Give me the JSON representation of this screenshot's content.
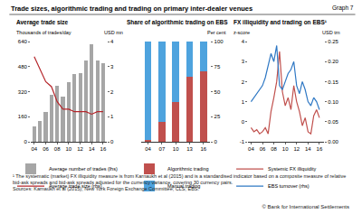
{
  "title": "Trade sizes, algorithmic trading and trading on primary inter-dealer venues",
  "graph_label": "Graph 7",
  "footnote": "¹ The systematic (market) FX illiquidity measure is from Karnaukh et al (2015) and is a standardised indicator based on a composite measure of relative bid-ask spreads and bid-ask spreads adjusted for the currency variance, covering 30 currency pairs.",
  "sources": "Sources: Karnaukh et al (2015); New York Foreign Exchange Committee; CLS; EBS.",
  "copyright": "© Bank for International Settlements",
  "chart_data": [
    {
      "type": "bar",
      "title": "Average trade size",
      "ylabel": "Thousands of trades/day",
      "y2label": "USD mn",
      "x": [
        2004,
        2005,
        2006,
        2007,
        2008,
        2009,
        2010,
        2011,
        2012,
        2013,
        2014,
        2015,
        2016
      ],
      "xlim": [
        2003.4,
        2016.6
      ],
      "xticks": [
        {
          "value": 2004,
          "label": "04"
        },
        {
          "value": 2006,
          "label": "06"
        },
        {
          "value": 2008,
          "label": "08"
        },
        {
          "value": 2010,
          "label": "10"
        },
        {
          "value": 2012,
          "label": "12"
        },
        {
          "value": 2014,
          "label": "14"
        },
        {
          "value": 2016,
          "label": "16"
        }
      ],
      "ylim": [
        0,
        640
      ],
      "yticks": [
        0,
        160,
        320,
        480,
        640
      ],
      "y2lim": [
        0,
        4
      ],
      "y2ticks": [
        0,
        1,
        2,
        3,
        4
      ],
      "grid": false,
      "series": [
        {
          "name": "Average number of trades (lhs)",
          "type": "bar",
          "color": "#a6a6a6",
          "values": [
            100,
            130,
            190,
            300,
            360,
            290,
            380,
            430,
            440,
            520,
            620,
            520,
            500
          ]
        },
        {
          "name": "Average trade size (rhs)",
          "type": "line",
          "axis": "y2",
          "color": "#b5262b",
          "values": [
            3.4,
            2.9,
            2.4,
            2.2,
            1.6,
            1.3,
            1.3,
            1.2,
            1.2,
            1.2,
            1.1,
            1.2,
            1.2
          ]
        }
      ]
    },
    {
      "type": "bar",
      "title": "Share of algorithmic trading on EBS",
      "ylabel": "Per cent",
      "categories": [
        "04",
        "07",
        "10",
        "13",
        "16"
      ],
      "ylim": [
        0,
        100
      ],
      "yticks": [
        0,
        25,
        50,
        75,
        100
      ],
      "stacked": true,
      "grid": false,
      "series": [
        {
          "name": "Algorithmic trading",
          "color": "#c0504d",
          "values": [
            2,
            20,
            40,
            65,
            70
          ]
        },
        {
          "name": "Manual trading",
          "color": "#4ea3de",
          "values": [
            98,
            80,
            60,
            35,
            30
          ]
        }
      ]
    },
    {
      "type": "line",
      "title": "FX illiquidity and trading on EBS¹",
      "ylabel": "z-score",
      "y2label": "USD trn",
      "x": [
        2004,
        2004.5,
        2005,
        2005.5,
        2006,
        2006.5,
        2007,
        2007.5,
        2008,
        2008.5,
        2009,
        2009.5,
        2010,
        2010.5,
        2011,
        2011.5,
        2012,
        2012.5,
        2013,
        2013.5,
        2014,
        2014.5,
        2015,
        2015.5,
        2016
      ],
      "xlim": [
        2003.5,
        2016.8
      ],
      "xticks": [
        {
          "value": 2004,
          "label": "04"
        },
        {
          "value": 2006,
          "label": "06"
        },
        {
          "value": 2008,
          "label": "08"
        },
        {
          "value": 2010,
          "label": "10"
        },
        {
          "value": 2012,
          "label": "12"
        },
        {
          "value": 2014,
          "label": "14"
        },
        {
          "value": 2016,
          "label": "16"
        }
      ],
      "ylim": [
        -1,
        4
      ],
      "yticks": [
        -1,
        0,
        1,
        2,
        3,
        4
      ],
      "y2lim": [
        0,
        0.25
      ],
      "y2ticks": [
        {
          "value": 0,
          "label": "0.00"
        },
        0.05,
        {
          "value": 0.1,
          "label": "0.10"
        },
        0.15,
        {
          "value": 0.2,
          "label": "0.20"
        },
        0.25
      ],
      "grid": false,
      "series": [
        {
          "name": "Systemic FX illiquidity",
          "type": "line",
          "color": "#c0504d",
          "values": [
            -0.3,
            -0.5,
            -0.4,
            -0.6,
            -0.5,
            -0.3,
            -0.6,
            0.5,
            1.2,
            2.0,
            3.5,
            1.5,
            0.8,
            1.2,
            0.6,
            1.8,
            1.0,
            0.5,
            -0.2,
            0.2,
            -0.5,
            -0.6,
            0.3,
            0.6,
            0.2
          ]
        },
        {
          "name": "EBS turnover (rhs)",
          "type": "line",
          "axis": "y2",
          "color": "#2f78c4",
          "values": [
            0.1,
            0.11,
            0.12,
            0.13,
            0.14,
            0.16,
            0.19,
            0.22,
            0.2,
            0.24,
            0.14,
            0.13,
            0.15,
            0.17,
            0.18,
            0.2,
            0.14,
            0.12,
            0.15,
            0.13,
            0.1,
            0.09,
            0.11,
            0.1,
            0.08
          ]
        }
      ]
    }
  ]
}
